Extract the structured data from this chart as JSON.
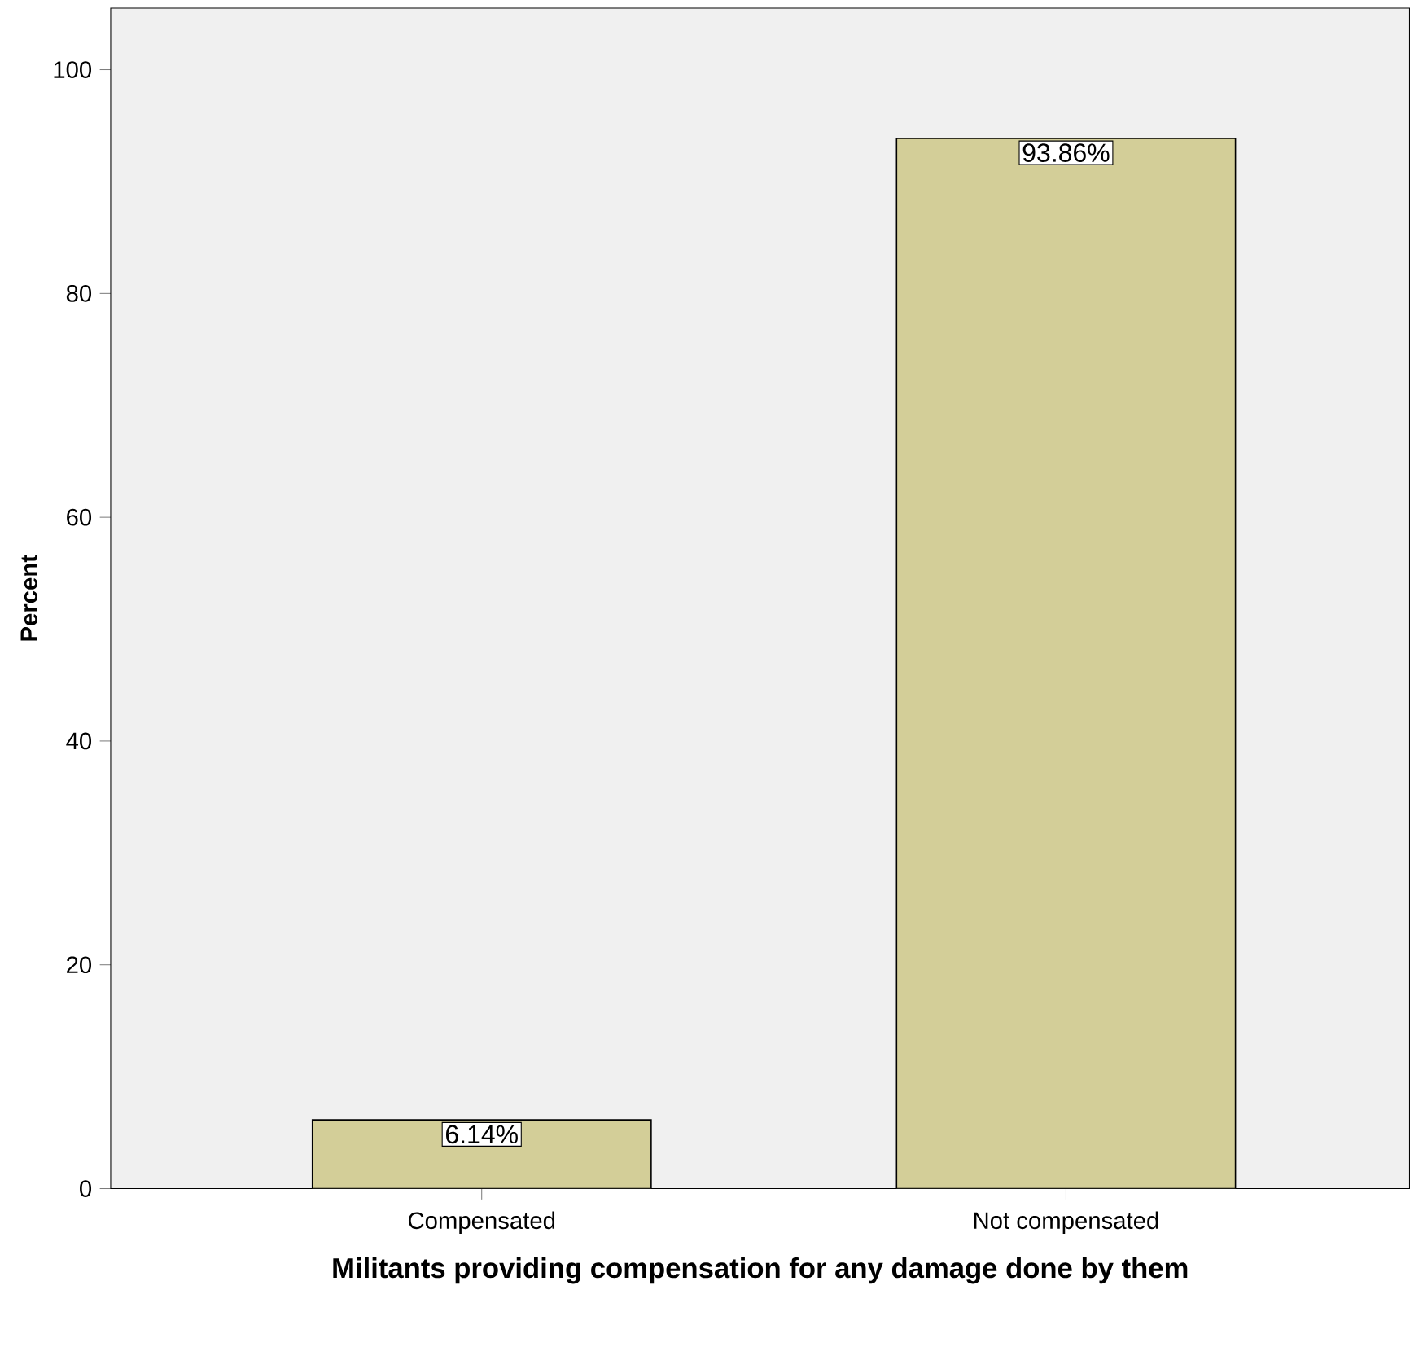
{
  "chart_data": {
    "type": "bar",
    "xlabel": "Militants providing compensation for any damage done by them",
    "ylabel": "Percent",
    "categories": [
      "Compensated",
      "Not compensated"
    ],
    "values": [
      6.14,
      93.86
    ],
    "value_labels": [
      "6.14%",
      "93.86%"
    ],
    "color": "#d3ce98",
    "ylim": [
      0,
      105.5
    ],
    "yticks": [
      0,
      20,
      40,
      60,
      80,
      100
    ],
    "grid": false
  }
}
